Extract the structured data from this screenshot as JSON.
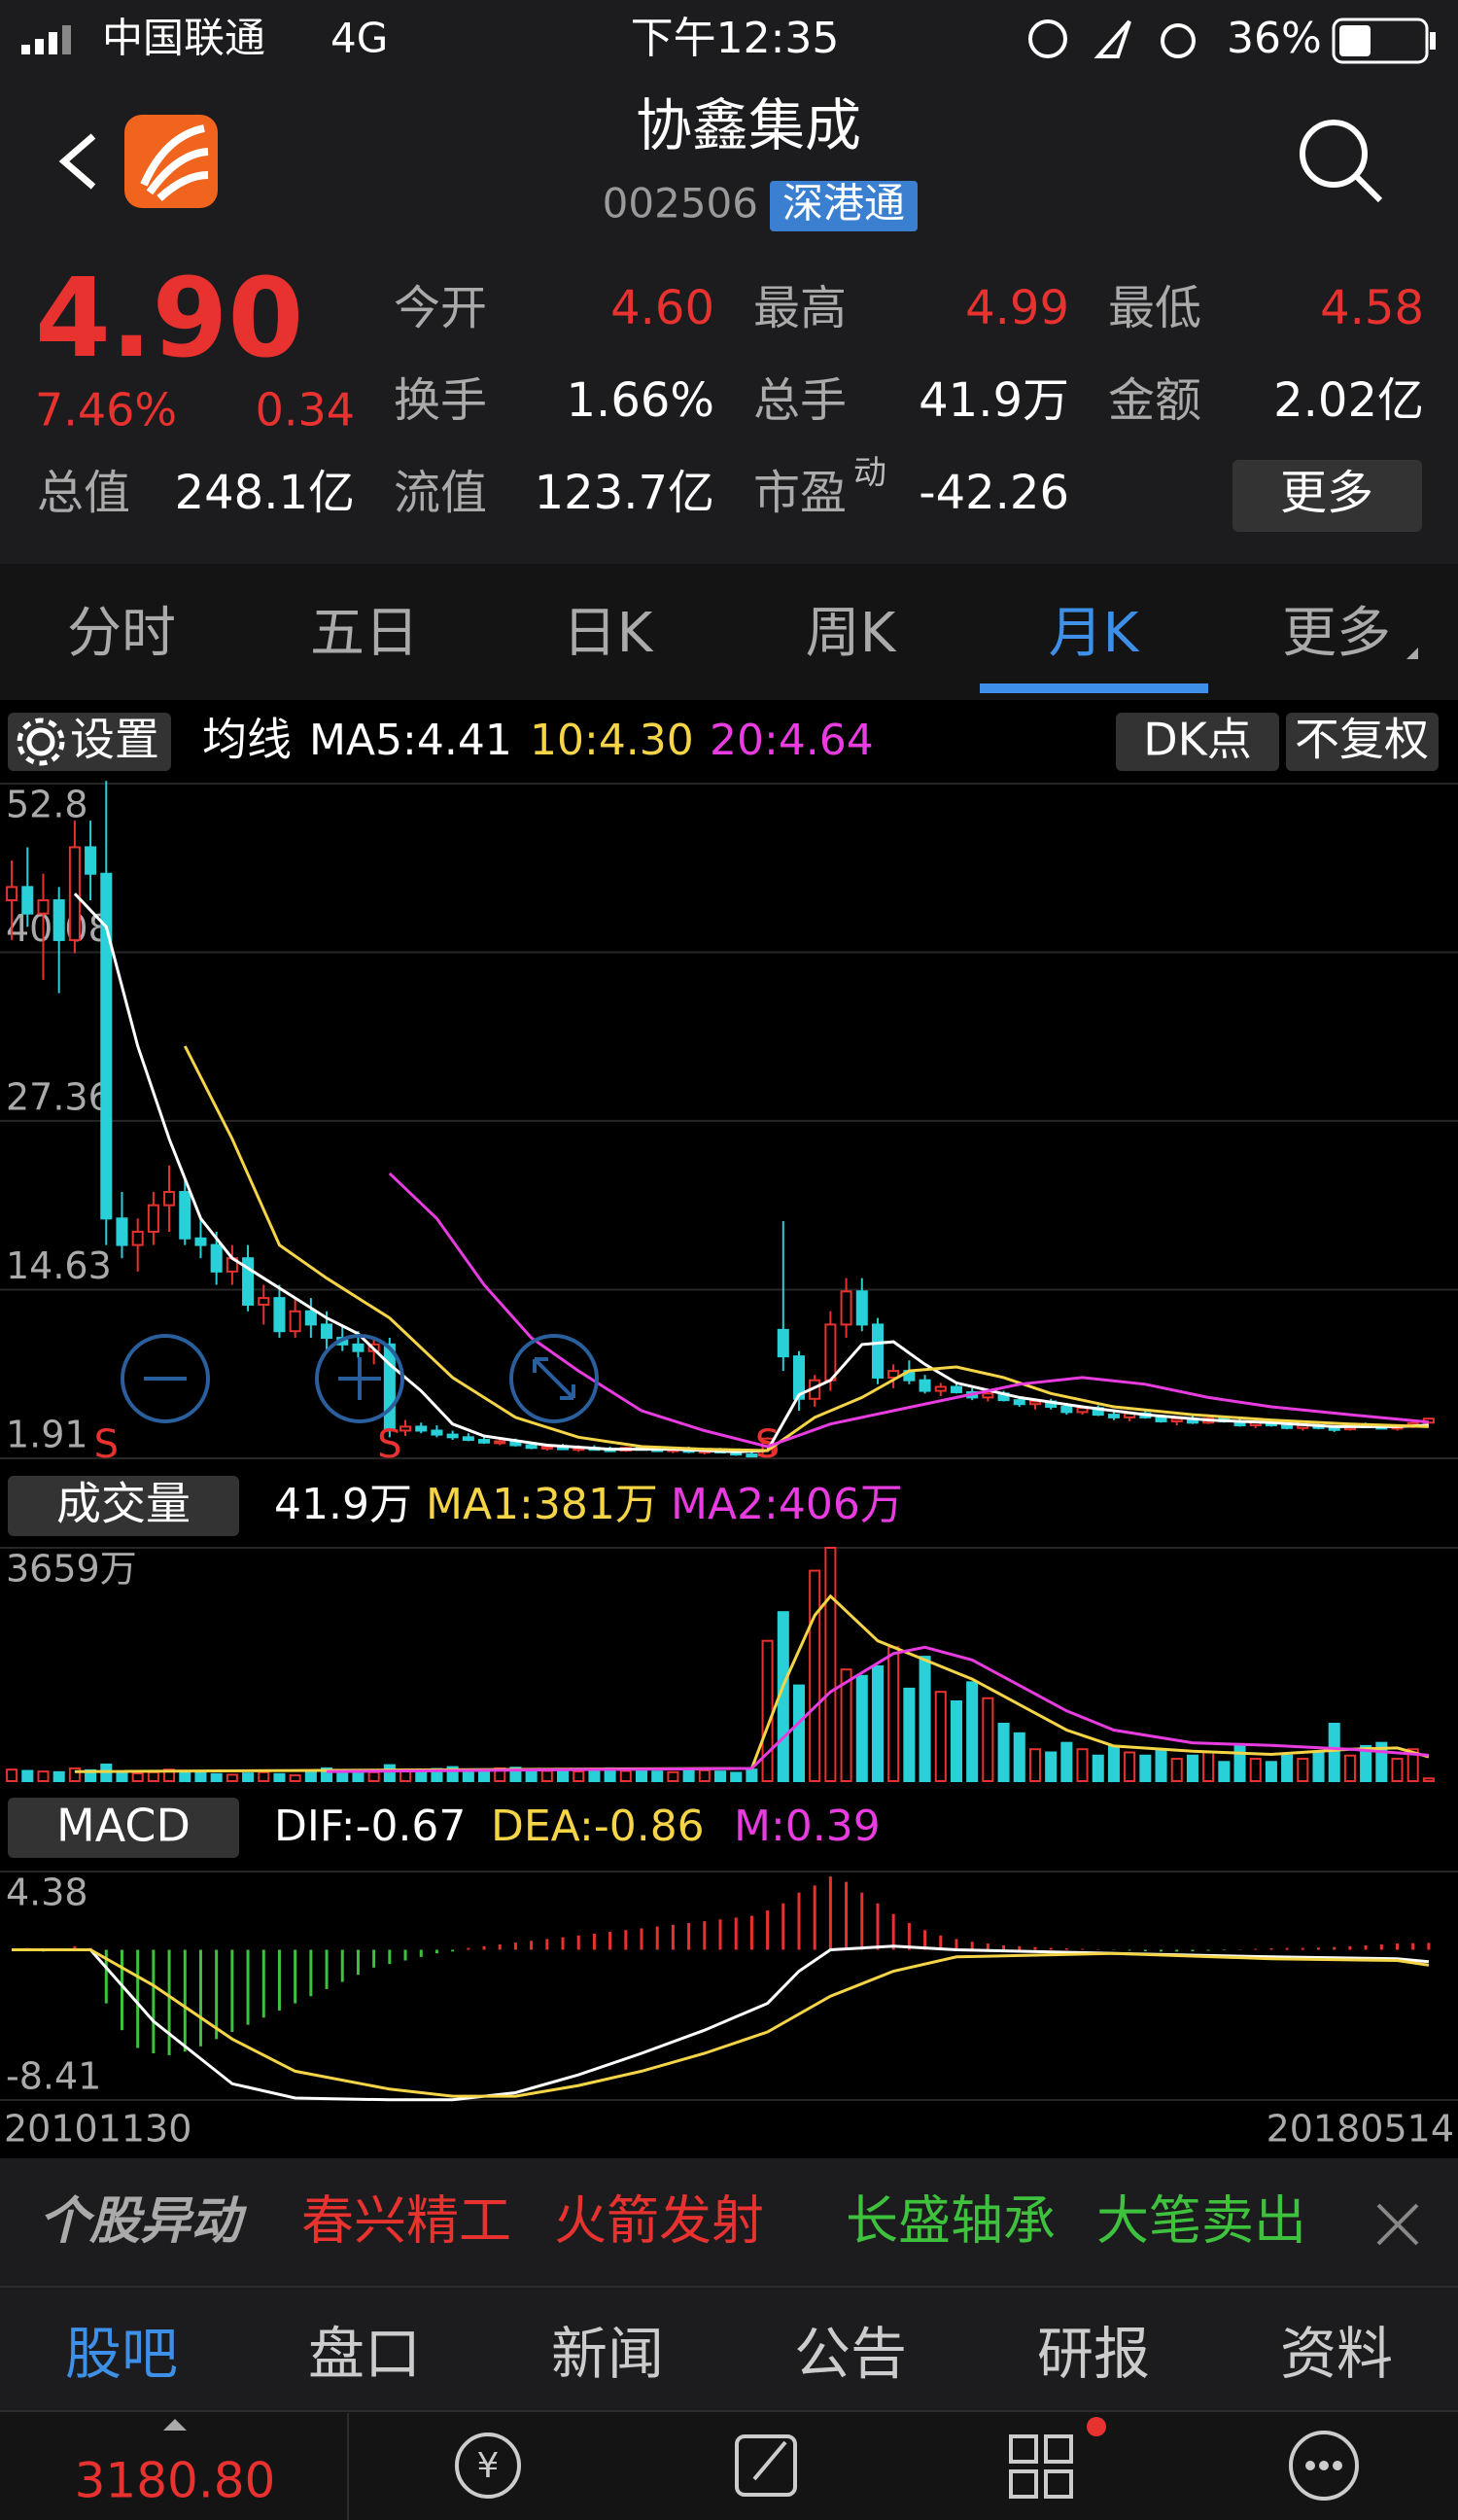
{
  "status_bar": {
    "carrier": "中国联通",
    "network": "4G",
    "time": "下午12:35",
    "battery": "36%"
  },
  "header": {
    "title": "协鑫集成",
    "code": "002506",
    "badge": "深港通"
  },
  "quote": {
    "price": "4.90",
    "change_pct": "7.46%",
    "change": "0.34",
    "fields": [
      {
        "label": "今开",
        "value": "4.60"
      },
      {
        "label": "最高",
        "value": "4.99"
      },
      {
        "label": "最低",
        "value": "4.58"
      },
      {
        "label": "换手",
        "value": "1.66%"
      },
      {
        "label": "总手",
        "value": "41.9万"
      },
      {
        "label": "金额",
        "value": "2.02亿"
      },
      {
        "label": "总值",
        "value": "248.1亿"
      },
      {
        "label": "流值",
        "value": "123.7亿"
      },
      {
        "label": "市盈",
        "value": "-42.26"
      }
    ],
    "pe_sup": "动",
    "more": "更多"
  },
  "tabs": {
    "items": [
      "分时",
      "五日",
      "日K",
      "周K",
      "月K",
      "更多"
    ],
    "selected": "月K"
  },
  "toolbar": {
    "settings": "设置",
    "ma_label": "均线",
    "ma5": "MA5:4.41",
    "ma10": "10:4.30",
    "ma20": "20:4.64",
    "dk": "DK点",
    "adjust": "不复权"
  },
  "kline": {
    "type": "candlestick",
    "ylim": [
      1.91,
      52.8
    ],
    "yticks": [
      52.8,
      40.08,
      27.36,
      14.63,
      1.91
    ],
    "up_color": "#e8322f",
    "down_color": "#2ad0d8",
    "open": [
      44,
      45,
      43,
      44,
      41,
      48,
      46,
      20,
      18,
      19,
      21,
      22,
      18.5,
      18,
      16,
      17,
      13.5,
      14,
      11.5,
      13,
      12,
      11,
      10.5,
      10,
      10.5,
      4,
      4.3,
      4,
      3.7,
      3.5,
      3.3,
      3.1,
      3.2,
      2.9,
      2.7,
      2.8,
      2.6,
      2.7,
      2.6,
      2.5,
      2.7,
      2.6,
      2.5,
      2.6,
      2.4,
      2.5,
      2.4,
      2.2,
      2.1,
      11.6,
      9.6,
      6.4,
      7.8,
      12,
      14.5,
      12,
      8,
      8.5,
      7.8,
      7,
      7.3,
      6.9,
      6.5,
      6.8,
      6.3,
      6,
      6.2,
      5.8,
      5.4,
      5.7,
      5.2,
      5,
      5.3,
      5,
      4.7,
      4.9,
      4.6,
      4.9,
      4.7,
      4.4,
      4.6,
      4.4,
      4.2,
      4.4,
      4.2,
      4.1,
      4.4,
      4.3,
      4.2,
      4.3,
      4.6
    ],
    "high": [
      47,
      48,
      46,
      45,
      50,
      50,
      53,
      22,
      20,
      22,
      24,
      23,
      20,
      19,
      18,
      18,
      15,
      15,
      14,
      14,
      13,
      12,
      11.5,
      11,
      11,
      4.8,
      4.6,
      4.4,
      4,
      3.8,
      3.6,
      3.4,
      3.4,
      3.1,
      3.0,
      3.0,
      2.9,
      2.9,
      2.8,
      2.8,
      2.9,
      2.8,
      2.7,
      2.8,
      2.6,
      2.7,
      2.6,
      2.4,
      3.5,
      19.8,
      10,
      8.2,
      13,
      15.5,
      15.5,
      12.5,
      9,
      9.3,
      8.2,
      7.6,
      7.6,
      7.2,
      7,
      7,
      6.6,
      6.4,
      6.4,
      6.1,
      5.9,
      5.9,
      5.5,
      5.4,
      5.5,
      5.2,
      5,
      5.1,
      5,
      5.1,
      4.9,
      4.7,
      4.8,
      4.6,
      4.5,
      4.6,
      4.4,
      4.5,
      4.6,
      4.5,
      4.4,
      4.7,
      4.99
    ],
    "low": [
      41,
      42,
      38,
      37,
      40,
      44,
      18,
      17,
      16,
      18,
      19,
      18,
      17,
      15,
      15,
      13,
      12,
      11,
      11,
      11,
      10,
      10,
      9.5,
      9,
      3.5,
      3.6,
      3.8,
      3.5,
      3.3,
      3.2,
      3.0,
      2.9,
      2.8,
      2.6,
      2.5,
      2.6,
      2.4,
      2.5,
      2.4,
      2.4,
      2.5,
      2.4,
      2.3,
      2.3,
      2.2,
      2.3,
      2.1,
      2.0,
      2.0,
      8.5,
      5.5,
      5.8,
      7,
      11,
      11.5,
      7.5,
      7.2,
      7.5,
      6.8,
      6.6,
      6.8,
      6.3,
      6.2,
      6.2,
      5.8,
      5.6,
      5.6,
      5.2,
      5.2,
      5.1,
      4.8,
      4.7,
      4.9,
      4.6,
      4.4,
      4.5,
      4.5,
      4.6,
      4.3,
      4.2,
      4.3,
      4.1,
      4.0,
      4.1,
      3.9,
      4.0,
      4.2,
      4.1,
      4.0,
      4.2,
      4.58
    ],
    "close": [
      45,
      43,
      44,
      41,
      48,
      46,
      20,
      18,
      19,
      21,
      22,
      18.5,
      18,
      16,
      17,
      13.5,
      14,
      11.5,
      13,
      12,
      11,
      10.5,
      10,
      10.5,
      4,
      4.3,
      4,
      3.7,
      3.5,
      3.3,
      3.1,
      3.2,
      2.9,
      2.7,
      2.8,
      2.6,
      2.7,
      2.6,
      2.5,
      2.7,
      2.6,
      2.5,
      2.6,
      2.4,
      2.5,
      2.4,
      2.2,
      2.1,
      3.4,
      9.6,
      6.4,
      7.8,
      12,
      14.5,
      12,
      8,
      8.5,
      7.8,
      7,
      7.3,
      6.9,
      6.5,
      6.8,
      6.3,
      6,
      6.2,
      5.8,
      5.4,
      5.7,
      5.2,
      5.0,
      5.3,
      5.0,
      4.7,
      4.9,
      4.6,
      4.9,
      4.7,
      4.4,
      4.6,
      4.4,
      4.2,
      4.4,
      4.2,
      4.1,
      4.4,
      4.3,
      4.2,
      4.3,
      4.56,
      4.9
    ],
    "lines": [
      {
        "color": "#ffffff",
        "x": [
          4,
          6,
          8,
          10,
          12,
          14,
          16,
          18,
          20,
          22,
          24,
          26,
          28,
          30,
          34,
          38,
          42,
          46,
          48,
          50,
          52,
          54,
          56,
          58,
          60,
          64,
          68,
          72,
          76,
          80,
          84,
          88,
          90
        ],
        "values": [
          44.5,
          42,
          33,
          26,
          20,
          17,
          15.5,
          14,
          12.5,
          11.3,
          9,
          7,
          4.5,
          3.6,
          2.9,
          2.6,
          2.6,
          2.4,
          2.5,
          6.7,
          7.8,
          10.5,
          10.7,
          9,
          7.6,
          6.5,
          5.8,
          5.2,
          4.8,
          4.6,
          4.3,
          4.3,
          4.41
        ]
      },
      {
        "color": "#f5d547",
        "x": [
          11,
          14,
          17,
          20,
          24,
          28,
          32,
          36,
          40,
          44,
          48,
          51,
          54,
          57,
          60,
          63,
          66,
          70,
          75,
          80,
          85,
          90
        ],
        "values": [
          33,
          26,
          18,
          15.5,
          12.5,
          8,
          5,
          3.5,
          2.8,
          2.6,
          2.5,
          5,
          6.5,
          8.5,
          8.8,
          8,
          6.8,
          5.8,
          5.2,
          4.8,
          4.5,
          4.3
        ]
      },
      {
        "color": "#e83ce0",
        "x": [
          24,
          27,
          30,
          33,
          36,
          40,
          44,
          48,
          52,
          56,
          60,
          64,
          68,
          72,
          76,
          80,
          85,
          90
        ],
        "values": [
          23.4,
          20,
          15,
          11,
          8.5,
          5.5,
          4.0,
          2.8,
          4.5,
          5.5,
          6.5,
          7.5,
          8.0,
          7.5,
          6.5,
          5.8,
          5.2,
          4.64
        ]
      }
    ],
    "signals": [
      {
        "label": "S",
        "index": 6
      },
      {
        "label": "S",
        "index": 24
      },
      {
        "label": "S",
        "index": 48
      }
    ]
  },
  "volume": {
    "type": "bar",
    "label": "成交量",
    "current": "41.9万",
    "ma1": "MA1:381万",
    "ma2": "MA2:406万",
    "ylim": [
      0,
      3659
    ],
    "yticks": [
      {
        "value": 3659,
        "label": "3659万"
      }
    ],
    "values": [
      180,
      160,
      150,
      140,
      200,
      170,
      260,
      150,
      120,
      140,
      180,
      160,
      130,
      110,
      100,
      120,
      140,
      110,
      90,
      130,
      200,
      160,
      120,
      140,
      250,
      180,
      160,
      190,
      220,
      170,
      150,
      200,
      210,
      180,
      160,
      190,
      150,
      170,
      200,
      160,
      180,
      150,
      140,
      160,
      170,
      150,
      130,
      180,
      2200,
      2650,
      1500,
      3300,
      3659,
      1750,
      1650,
      1800,
      2100,
      1450,
      1950,
      1400,
      1250,
      1550,
      1300,
      900,
      750,
      500,
      450,
      600,
      500,
      400,
      550,
      450,
      400,
      500,
      350,
      400,
      450,
      300,
      550,
      350,
      300,
      400,
      350,
      450,
      900,
      400,
      550,
      600,
      350,
      500,
      41.9
    ],
    "lines": [
      {
        "color": "#f5d547",
        "x": [
          4,
          47,
          49,
          51,
          52,
          55,
          58,
          61,
          64,
          67,
          70,
          75,
          80,
          85,
          88,
          90
        ],
        "values": [
          150,
          200,
          1500,
          2600,
          2900,
          2200,
          1900,
          1600,
          1200,
          800,
          550,
          470,
          420,
          500,
          520,
          381
        ]
      },
      {
        "color": "#e83ce0",
        "x": [
          20,
          47,
          52,
          56,
          58,
          61,
          64,
          67,
          70,
          75,
          80,
          85,
          90
        ],
        "values": [
          150,
          200,
          1400,
          2000,
          2100,
          1900,
          1500,
          1100,
          800,
          600,
          560,
          500,
          406
        ]
      }
    ]
  },
  "macd": {
    "type": "bar",
    "label": "MACD",
    "dif": "DIF:-0.67",
    "dea": "DEA:-0.86",
    "m": "M:0.39",
    "ylim": [
      -8.41,
      4.38
    ],
    "yticks": [
      4.38,
      -8.41
    ],
    "up_color": "#e8322f",
    "down_color": "#3ec23e",
    "values": [
      0,
      0.1,
      -0.1,
      0,
      0.2,
      0.1,
      -3,
      -4.5,
      -5.5,
      -5.8,
      -5.9,
      -5.7,
      -5.4,
      -5,
      -4.6,
      -4.2,
      -3.8,
      -3.4,
      -3,
      -2.6,
      -2.2,
      -1.8,
      -1.4,
      -1,
      -0.8,
      -0.6,
      -0.4,
      -0.2,
      -0.1,
      0.1,
      0.2,
      0.3,
      0.4,
      0.5,
      0.6,
      0.7,
      0.8,
      0.9,
      1.0,
      1.1,
      1.2,
      1.3,
      1.4,
      1.5,
      1.6,
      1.7,
      1.8,
      1.9,
      2.2,
      2.6,
      3.2,
      3.6,
      4.1,
      3.8,
      3.2,
      2.6,
      2.0,
      1.5,
      1.1,
      0.8,
      0.6,
      0.45,
      0.35,
      0.25,
      0.2,
      0.15,
      0.1,
      0.08,
      0.05,
      0.03,
      -0.02,
      -0.05,
      -0.08,
      -0.1,
      -0.1,
      -0.08,
      -0.05,
      -0.03,
      0.02,
      0.05,
      0.08,
      0.1,
      0.1,
      0.12,
      0.15,
      0.2,
      0.25,
      0.3,
      0.35,
      0.37,
      0.39
    ],
    "lines": [
      {
        "color": "#ffffff",
        "x": [
          0,
          5,
          9,
          14,
          18,
          24,
          28,
          32,
          36,
          40,
          44,
          48,
          50,
          52,
          56,
          60,
          70,
          80,
          88,
          90
        ],
        "values": [
          0,
          0,
          -4,
          -7.5,
          -8.3,
          -8.4,
          -8.4,
          -8,
          -7,
          -5.8,
          -4.5,
          -3,
          -1.2,
          0,
          0.2,
          0,
          -0.2,
          -0.4,
          -0.5,
          -0.67
        ]
      },
      {
        "color": "#f5d547",
        "x": [
          0,
          5,
          9,
          14,
          18,
          24,
          28,
          32,
          36,
          40,
          44,
          48,
          52,
          56,
          60,
          70,
          80,
          88,
          90
        ],
        "values": [
          0,
          0,
          -2,
          -5,
          -6.8,
          -7.8,
          -8.2,
          -8.2,
          -7.6,
          -6.8,
          -5.8,
          -4.6,
          -2.6,
          -1.2,
          -0.4,
          -0.2,
          -0.5,
          -0.6,
          -0.86
        ]
      }
    ]
  },
  "dates": {
    "start": "20101130",
    "end": "20180514"
  },
  "ticker": {
    "title": "个股异动",
    "items": [
      {
        "text": "春兴精工",
        "color": "#e8322f"
      },
      {
        "text": "火箭发射",
        "color": "#e8322f"
      },
      {
        "text": "长盛轴承",
        "color": "#3ec23e"
      },
      {
        "text": "大笔卖出",
        "color": "#3ec23e"
      }
    ]
  },
  "bottom_tabs": {
    "items": [
      "股吧",
      "盘口",
      "新闻",
      "公告",
      "研报",
      "资料"
    ],
    "selected": "股吧"
  },
  "bottom_bar": {
    "index_value": "3180.80"
  }
}
